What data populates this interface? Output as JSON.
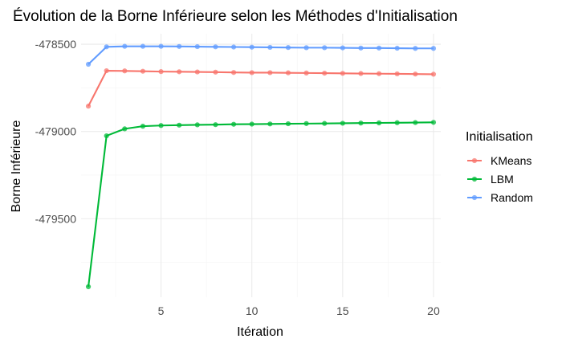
{
  "chart_data": {
    "type": "line",
    "title": "Évolution de la Borne Inférieure selon les Méthodes d'Initialisation",
    "xlabel": "Itération",
    "ylabel": "Borne Inférieure",
    "xlim": [
      0.6,
      20.4
    ],
    "ylim": [
      -479950,
      -478440
    ],
    "x_ticks": [
      5,
      10,
      15,
      20
    ],
    "x_tick_labels": [
      "5",
      "10",
      "15",
      "20"
    ],
    "y_ticks": [
      -478500,
      -479000,
      -479500
    ],
    "y_tick_labels": [
      "-478500",
      "-479000",
      "-479500"
    ],
    "grid": true,
    "legend": {
      "title": "Initialisation",
      "position": "right"
    },
    "x": [
      1,
      2,
      3,
      4,
      5,
      6,
      7,
      8,
      9,
      10,
      11,
      12,
      13,
      14,
      15,
      16,
      17,
      18,
      19,
      20
    ],
    "series": [
      {
        "name": "KMeans",
        "color": "#F8766D",
        "values": [
          -478855,
          -478652,
          -478653,
          -478655,
          -478657,
          -478658,
          -478659,
          -478660,
          -478662,
          -478663,
          -478663,
          -478664,
          -478665,
          -478666,
          -478667,
          -478668,
          -478669,
          -478670,
          -478671,
          -478672
        ]
      },
      {
        "name": "LBM",
        "color": "#00BA38",
        "values": [
          -479890,
          -479025,
          -478985,
          -478970,
          -478966,
          -478964,
          -478962,
          -478961,
          -478959,
          -478958,
          -478957,
          -478956,
          -478955,
          -478954,
          -478953,
          -478952,
          -478951,
          -478950,
          -478949,
          -478948
        ]
      },
      {
        "name": "Random",
        "color": "#619CFF",
        "values": [
          -478615,
          -478515,
          -478512,
          -478512,
          -478512,
          -478513,
          -478514,
          -478515,
          -478516,
          -478517,
          -478518,
          -478519,
          -478520,
          -478520,
          -478521,
          -478522,
          -478522,
          -478523,
          -478524,
          -478524
        ]
      }
    ]
  }
}
